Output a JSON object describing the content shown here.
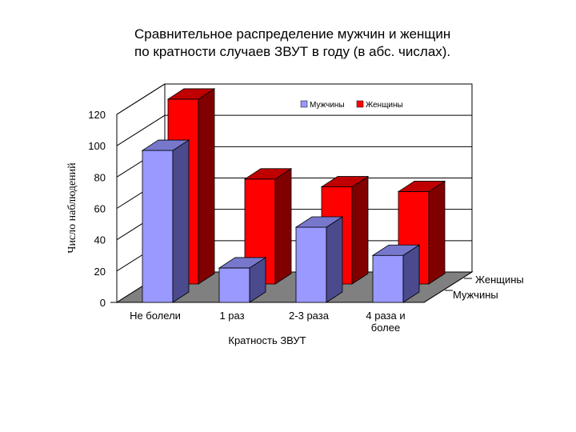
{
  "chart_data": {
    "type": "bar",
    "title_lines": [
      "Сравнительное распределение мужчин и женщин",
      "по кратности  случаев ЗВУТ в году (в абс. числах)."
    ],
    "xlabel": "Кратность ЗВУТ",
    "ylabel": "Число наблюдений",
    "categories": [
      "Не болели",
      "1 раз",
      "2-3 раза",
      "4 раза и более"
    ],
    "category_lines": [
      [
        "Не болели"
      ],
      [
        "1 раз"
      ],
      [
        "2-3 раза"
      ],
      [
        "4 раза и",
        "более"
      ]
    ],
    "series": [
      {
        "name": "Мужчины",
        "values": [
          97,
          22,
          48,
          30
        ]
      },
      {
        "name": "Женщины",
        "values": [
          118,
          67,
          62,
          59
        ]
      }
    ],
    "yticks": [
      "0",
      "20",
      "40",
      "60",
      "80",
      "100",
      "120"
    ],
    "ylim": [
      0,
      120
    ],
    "depth_labels": [
      "Женщины",
      "Мужчины"
    ],
    "legend": "top-right",
    "grid": true,
    "colors": {
      "men_front": "#9999ff",
      "men_side": "#4a4a8c",
      "men_top": "#7777cc",
      "women_front": "#ff0000",
      "women_side": "#800000",
      "women_top": "#c00000",
      "floor": "#808080"
    }
  }
}
